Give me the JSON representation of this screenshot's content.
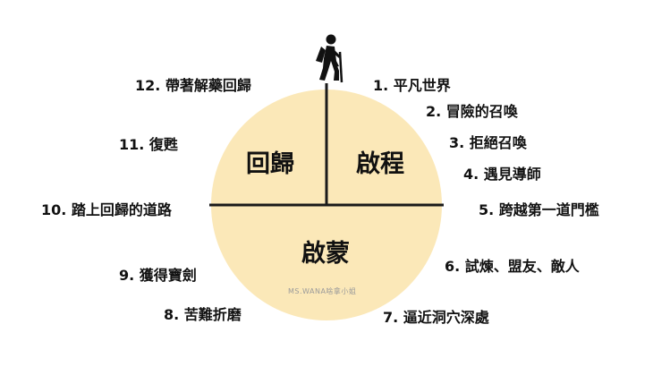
{
  "diagram": {
    "quadrants": {
      "return": "回歸",
      "departure": "啟程",
      "initiation": "啟蒙"
    },
    "stages": [
      "1. 平凡世界",
      "2. 冒險的召喚",
      "3. 拒絕召喚",
      "4. 遇見導師",
      "5. 跨越第一道門檻",
      "6. 試煉、盟友、敵人",
      "7. 逼近洞穴深處",
      "8. 苦難折磨",
      "9. 獲得寶劍",
      "10. 踏上回歸的道路",
      "11. 復甦",
      "12. 帶著解藥回歸"
    ],
    "credit": "MS.WANA啥拿小姐",
    "icon": "hiker-icon",
    "colors": {
      "circle": "#fbe8b8",
      "lines": "#1a1a1a",
      "text": "#111111"
    }
  }
}
